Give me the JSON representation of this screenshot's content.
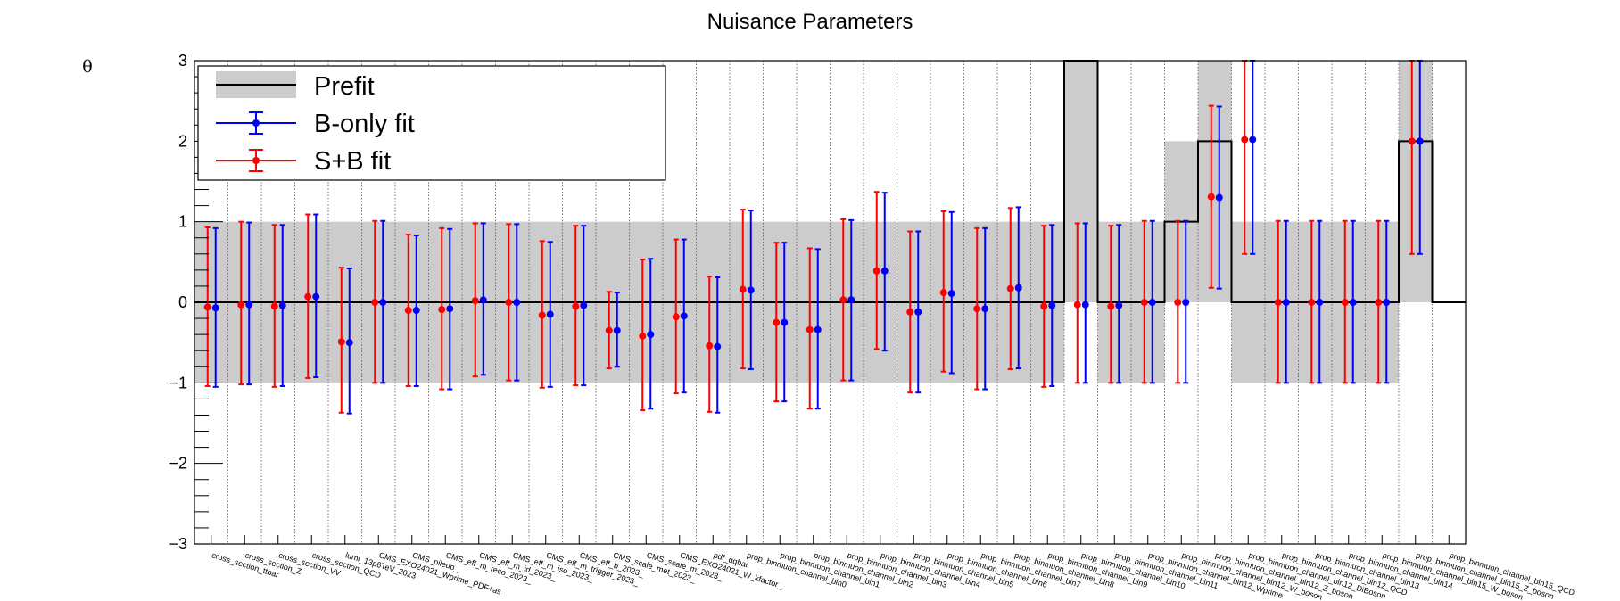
{
  "chart_data": {
    "type": "scatter",
    "title": "Nuisance Parameters",
    "ylabel": "θ",
    "xlabel": "",
    "ylim": [
      -3,
      3
    ],
    "yticks": [
      -3,
      -2,
      -1,
      0,
      1,
      2,
      3
    ],
    "ytick_labels": [
      "−3",
      "−2",
      "−1",
      "0",
      "1",
      "2",
      "3"
    ],
    "grid_x": true,
    "legend_position": "top-left",
    "categories": [
      "cross_section_ttbar",
      "cross_section_Z",
      "cross_section_VV",
      "cross_section_QCD",
      "lumi_13p6TeV_2023",
      "CMS_EXO24021_Wprime_PDF+as",
      "CMS_pileup_",
      "CMS_eff_m_reco_2023_",
      "CMS_eff_m_id_2023_",
      "CMS_eff_m_iso_2023_",
      "CMS_eff_m_trigger_2023_",
      "CMS_eff_b_2023_",
      "CMS_scale_met_2023_",
      "CMS_scale_m_2023_",
      "CMS_EXO24021_W_kfactor_",
      "pdf_qqbar",
      "prop_binmuon_channel_bin0",
      "prop_binmuon_channel_bin1",
      "prop_binmuon_channel_bin2",
      "prop_binmuon_channel_bin3",
      "prop_binmuon_channel_bin4",
      "prop_binmuon_channel_bin5",
      "prop_binmuon_channel_bin6",
      "prop_binmuon_channel_bin7",
      "prop_binmuon_channel_bin8",
      "prop_binmuon_channel_bin9",
      "prop_binmuon_channel_bin10",
      "prop_binmuon_channel_bin11",
      "prop_binmuon_channel_bin12_Wprime",
      "prop_binmuon_channel_bin12_W_boson",
      "prop_binmuon_channel_bin12_Z_boson",
      "prop_binmuon_channel_bin12_DiBoson",
      "prop_binmuon_channel_bin12_QCD",
      "prop_binmuon_channel_bin13",
      "prop_binmuon_channel_bin14",
      "prop_binmuon_channel_bin15_W_boson",
      "prop_binmuon_channel_bin15_Z_boson",
      "prop_binmuon_channel_bin15_QCD"
    ],
    "prefit": {
      "name": "Prefit",
      "center": [
        0,
        0,
        0,
        0,
        0,
        0,
        0,
        0,
        0,
        0,
        0,
        0,
        0,
        0,
        0,
        0,
        0,
        0,
        0,
        0,
        0,
        0,
        0,
        0,
        0,
        0,
        3,
        0,
        0,
        1,
        2,
        0,
        0,
        0,
        0,
        0,
        2,
        0
      ],
      "band_low": [
        -1,
        -1,
        -1,
        -1,
        -1,
        -1,
        -1,
        -1,
        -1,
        -1,
        -1,
        -1,
        -1,
        -1,
        -1,
        -1,
        -1,
        -1,
        -1,
        -1,
        -1,
        -1,
        -1,
        -1,
        -1,
        -1,
        0,
        -1,
        -1,
        0,
        0,
        -1,
        -1,
        -1,
        -1,
        -1,
        0,
        0
      ],
      "band_high": [
        1,
        1,
        1,
        1,
        1,
        1,
        1,
        1,
        1,
        1,
        1,
        1,
        1,
        1,
        1,
        1,
        1,
        1,
        1,
        1,
        1,
        1,
        1,
        1,
        1,
        1,
        3,
        1,
        1,
        2,
        3,
        1,
        1,
        1,
        1,
        1,
        3,
        0
      ]
    },
    "series": [
      {
        "name": "B-only fit",
        "color": "#0000ff",
        "values": [
          -0.07,
          -0.03,
          -0.04,
          0.07,
          -0.5,
          0.0,
          -0.1,
          -0.08,
          0.03,
          0.0,
          -0.15,
          -0.04,
          -0.35,
          -0.4,
          -0.17,
          -0.55,
          0.15,
          -0.25,
          -0.34,
          0.03,
          0.39,
          -0.12,
          0.11,
          -0.08,
          0.18,
          -0.04,
          -0.03,
          -0.04,
          0.0,
          0.0,
          1.3,
          2.02,
          0.0,
          0.0,
          0.0,
          0.0,
          2.0,
          null
        ],
        "err_low": [
          -1.05,
          -1.02,
          -1.04,
          -0.93,
          -1.38,
          -1.0,
          -1.04,
          -1.08,
          -0.9,
          -0.97,
          -1.05,
          -1.03,
          -0.8,
          -1.32,
          -1.12,
          -1.37,
          -0.83,
          -1.23,
          -1.32,
          -0.97,
          -0.6,
          -1.12,
          -0.88,
          -1.08,
          -0.82,
          -1.04,
          -1.0,
          -1.0,
          -1.0,
          -1.0,
          0.17,
          0.6,
          -1.0,
          -1.0,
          -1.0,
          -1.0,
          0.6,
          null
        ],
        "err_high": [
          0.92,
          0.99,
          0.96,
          1.09,
          0.42,
          1.01,
          0.83,
          0.91,
          0.98,
          0.97,
          0.75,
          0.95,
          0.12,
          0.54,
          0.78,
          0.31,
          1.14,
          0.74,
          0.66,
          1.02,
          1.36,
          0.88,
          1.12,
          0.92,
          1.18,
          0.96,
          0.98,
          0.96,
          1.01,
          1.01,
          2.43,
          3.0,
          1.01,
          1.01,
          1.01,
          1.01,
          3.0,
          null
        ]
      },
      {
        "name": "S+B fit",
        "color": "#ff0000",
        "values": [
          -0.06,
          -0.03,
          -0.05,
          0.07,
          -0.49,
          0.0,
          -0.1,
          -0.09,
          0.02,
          0.0,
          -0.16,
          -0.05,
          -0.35,
          -0.42,
          -0.18,
          -0.54,
          0.16,
          -0.25,
          -0.34,
          0.03,
          0.39,
          -0.12,
          0.12,
          -0.08,
          0.17,
          -0.05,
          -0.03,
          -0.05,
          0.0,
          0.0,
          1.31,
          2.02,
          0.0,
          0.0,
          0.0,
          0.0,
          2.0,
          null
        ],
        "err_low": [
          -1.04,
          -1.02,
          -1.05,
          -0.94,
          -1.37,
          -1.0,
          -1.04,
          -1.08,
          -0.92,
          -0.97,
          -1.06,
          -1.03,
          -0.82,
          -1.34,
          -1.13,
          -1.36,
          -0.82,
          -1.23,
          -1.32,
          -0.97,
          -0.58,
          -1.12,
          -0.86,
          -1.08,
          -0.83,
          -1.05,
          -1.0,
          -1.0,
          -1.0,
          -1.0,
          0.18,
          0.6,
          -1.0,
          -1.0,
          -1.0,
          -1.0,
          0.6,
          null
        ],
        "err_high": [
          0.93,
          1.0,
          0.96,
          1.09,
          0.43,
          1.01,
          0.84,
          0.92,
          0.98,
          0.97,
          0.76,
          0.95,
          0.13,
          0.53,
          0.78,
          0.32,
          1.15,
          0.74,
          0.67,
          1.03,
          1.37,
          0.88,
          1.13,
          0.92,
          1.17,
          0.95,
          0.98,
          0.95,
          1.01,
          1.01,
          2.44,
          3.0,
          1.01,
          1.01,
          1.01,
          1.01,
          3.0,
          null
        ]
      }
    ],
    "legend": [
      "Prefit",
      "B-only fit",
      "S+B fit"
    ]
  }
}
